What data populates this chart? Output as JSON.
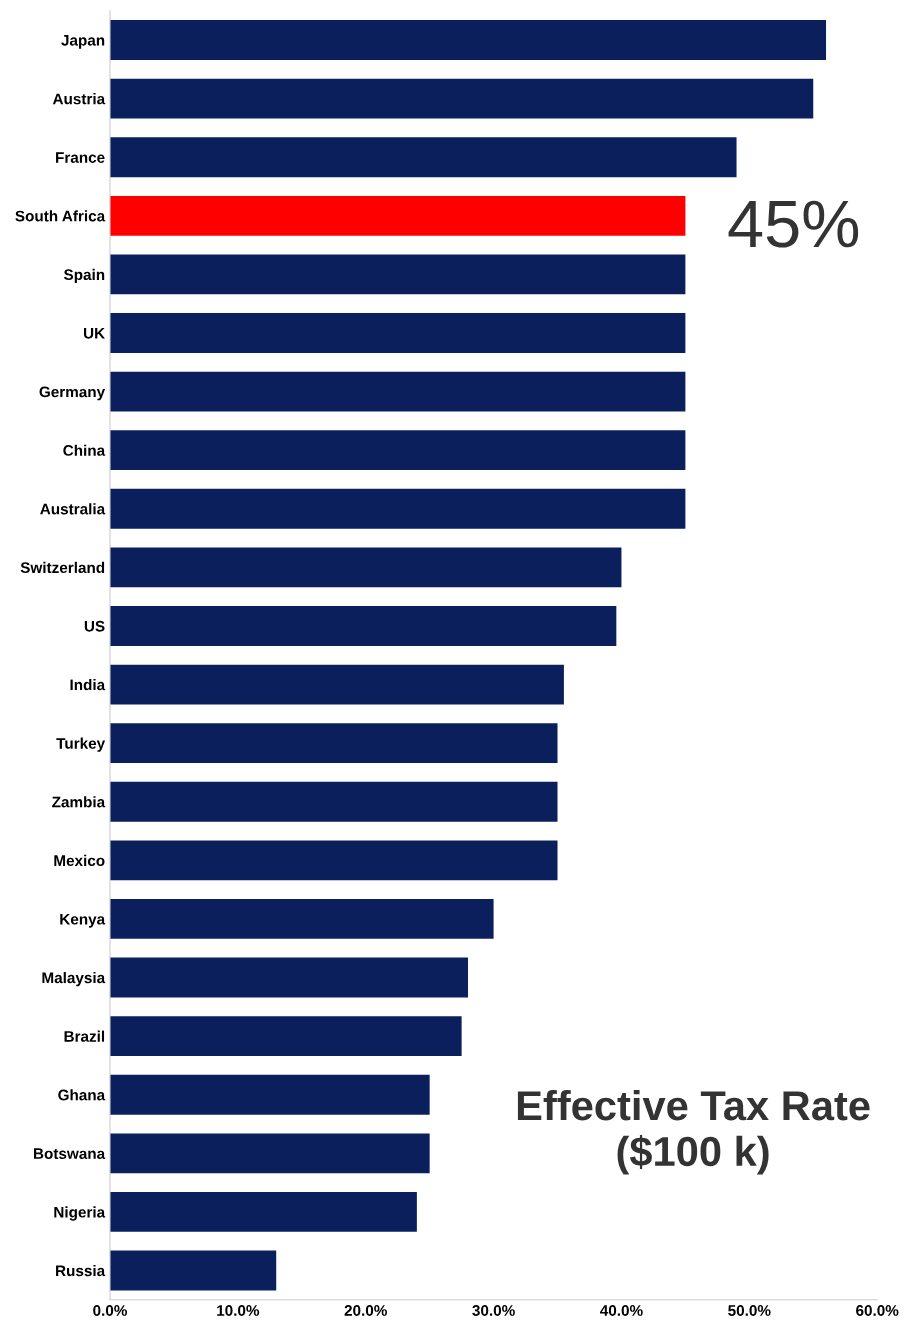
{
  "chart_data": {
    "type": "bar",
    "orientation": "horizontal",
    "title": "Effective Tax Rate\n($100 k)",
    "categories": [
      "Japan",
      "Austria",
      "France",
      "South Africa",
      "Spain",
      "UK",
      "Germany",
      "China",
      "Australia",
      "Switzerland",
      "US",
      "India",
      "Turkey",
      "Zambia",
      "Mexico",
      "Kenya",
      "Malaysia",
      "Brazil",
      "Ghana",
      "Botswana",
      "Nigeria",
      "Russia"
    ],
    "values": [
      56,
      55,
      49,
      45,
      45,
      45,
      45,
      45,
      45,
      40,
      39.6,
      35.5,
      35,
      35,
      35,
      30,
      28,
      27.5,
      25,
      25,
      24,
      13
    ],
    "colors": [
      "#0b1f5c",
      "#0b1f5c",
      "#0b1f5c",
      "#ff0000",
      "#0b1f5c",
      "#0b1f5c",
      "#0b1f5c",
      "#0b1f5c",
      "#0b1f5c",
      "#0b1f5c",
      "#0b1f5c",
      "#0b1f5c",
      "#0b1f5c",
      "#0b1f5c",
      "#0b1f5c",
      "#0b1f5c",
      "#0b1f5c",
      "#0b1f5c",
      "#0b1f5c",
      "#0b1f5c",
      "#0b1f5c",
      "#0b1f5c"
    ],
    "xlim": [
      0,
      60
    ],
    "xticks": [
      {
        "value": 0,
        "label": "0.0%"
      },
      {
        "value": 10,
        "label": "10.0%"
      },
      {
        "value": 20,
        "label": "20.0%"
      },
      {
        "value": 30,
        "label": "30.0%"
      },
      {
        "value": 40,
        "label": "40.0%"
      },
      {
        "value": 50,
        "label": "50.0%"
      },
      {
        "value": 60,
        "label": "60.0%"
      }
    ],
    "annotations": [
      {
        "text": "45%",
        "x": 45,
        "y": "South Africa"
      }
    ],
    "grid": false,
    "legend": false
  }
}
